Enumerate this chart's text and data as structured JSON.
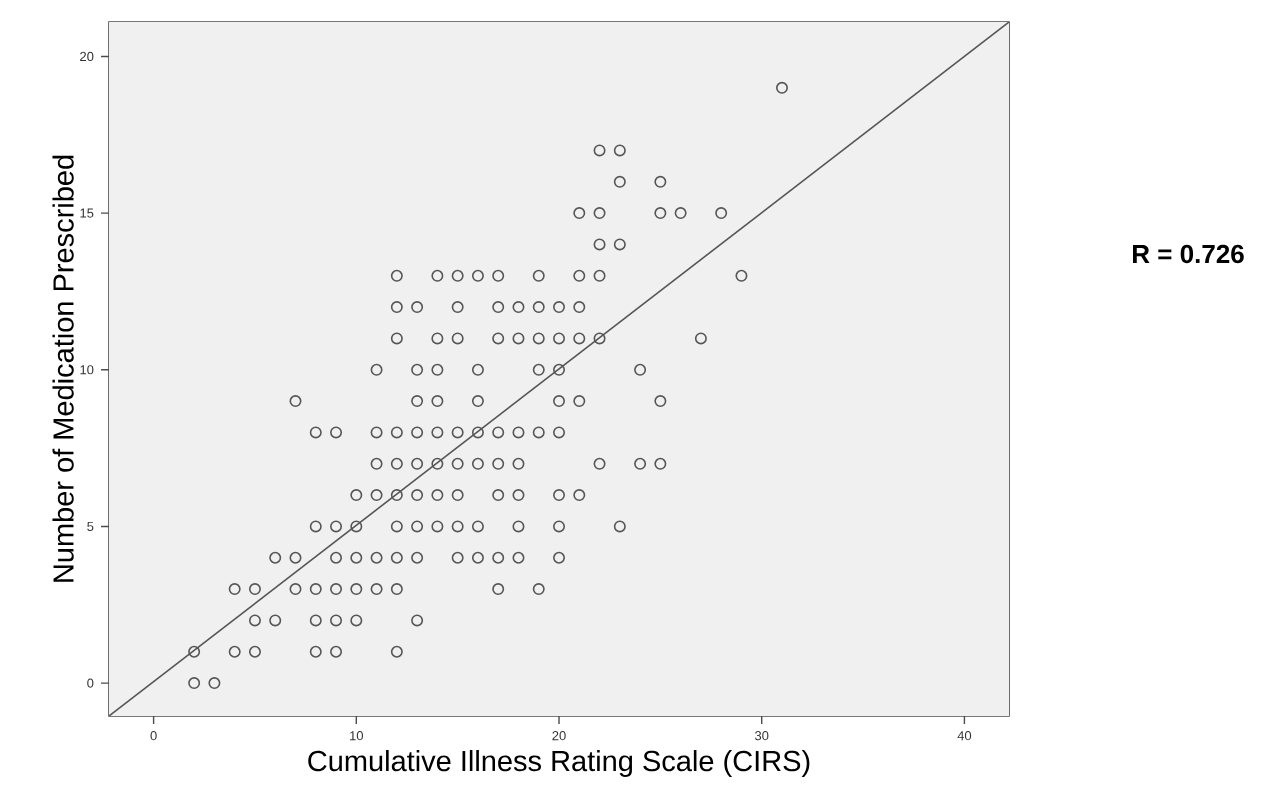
{
  "chart_data": {
    "type": "scatter",
    "xlabel": "Cumulative Illness Rating Scale (CIRS)",
    "ylabel": "Number of Medication Prescribed",
    "annotations": [
      "R = 0.726"
    ],
    "xlim": [
      -2.2,
      42.2
    ],
    "ylim": [
      -1.05,
      21.1
    ],
    "xticks": [
      0,
      10,
      20,
      30,
      40
    ],
    "yticks": [
      0,
      5,
      10,
      15,
      20
    ],
    "series": [
      {
        "color": "#555555",
        "marker": "circle",
        "x": [
          2,
          3,
          2,
          4,
          5,
          8,
          9,
          12,
          5,
          6,
          8,
          9,
          10,
          13,
          4,
          5,
          7,
          8,
          9,
          10,
          11,
          12,
          17,
          19,
          6,
          7,
          9,
          10,
          11,
          12,
          13,
          15,
          16,
          17,
          18,
          20,
          8,
          9,
          10,
          12,
          13,
          14,
          15,
          16,
          18,
          20,
          23,
          10,
          11,
          12,
          13,
          14,
          15,
          17,
          18,
          20,
          21,
          11,
          12,
          13,
          14,
          15,
          16,
          17,
          18,
          22,
          24,
          25,
          8,
          9,
          11,
          12,
          13,
          14,
          15,
          16,
          17,
          18,
          19,
          20,
          7,
          13,
          14,
          16,
          20,
          21,
          25,
          11,
          13,
          14,
          16,
          19,
          20,
          24,
          12,
          14,
          15,
          17,
          18,
          19,
          20,
          21,
          22,
          27,
          12,
          13,
          15,
          17,
          18,
          19,
          20,
          21,
          12,
          14,
          15,
          16,
          17,
          19,
          21,
          22,
          29,
          22,
          23,
          21,
          22,
          25,
          26,
          28,
          23,
          25,
          22,
          23,
          31
        ],
        "values": [
          0,
          0,
          1,
          1,
          1,
          1,
          1,
          1,
          2,
          2,
          2,
          2,
          2,
          2,
          3,
          3,
          3,
          3,
          3,
          3,
          3,
          3,
          3,
          3,
          4,
          4,
          4,
          4,
          4,
          4,
          4,
          4,
          4,
          4,
          4,
          4,
          5,
          5,
          5,
          5,
          5,
          5,
          5,
          5,
          5,
          5,
          5,
          6,
          6,
          6,
          6,
          6,
          6,
          6,
          6,
          6,
          6,
          7,
          7,
          7,
          7,
          7,
          7,
          7,
          7,
          7,
          7,
          7,
          8,
          8,
          8,
          8,
          8,
          8,
          8,
          8,
          8,
          8,
          8,
          8,
          9,
          9,
          9,
          9,
          9,
          9,
          9,
          10,
          10,
          10,
          10,
          10,
          10,
          10,
          11,
          11,
          11,
          11,
          11,
          11,
          11,
          11,
          11,
          11,
          12,
          12,
          12,
          12,
          12,
          12,
          12,
          12,
          13,
          13,
          13,
          13,
          13,
          13,
          13,
          13,
          13,
          14,
          14,
          15,
          15,
          15,
          15,
          15,
          16,
          16,
          17,
          17,
          19
        ]
      },
      {
        "type": "line",
        "color": "#555555",
        "marker": "none",
        "line_style": "solid",
        "x": [
          -2.2,
          42.2
        ],
        "values": [
          -1.05,
          21.1
        ]
      }
    ]
  }
}
